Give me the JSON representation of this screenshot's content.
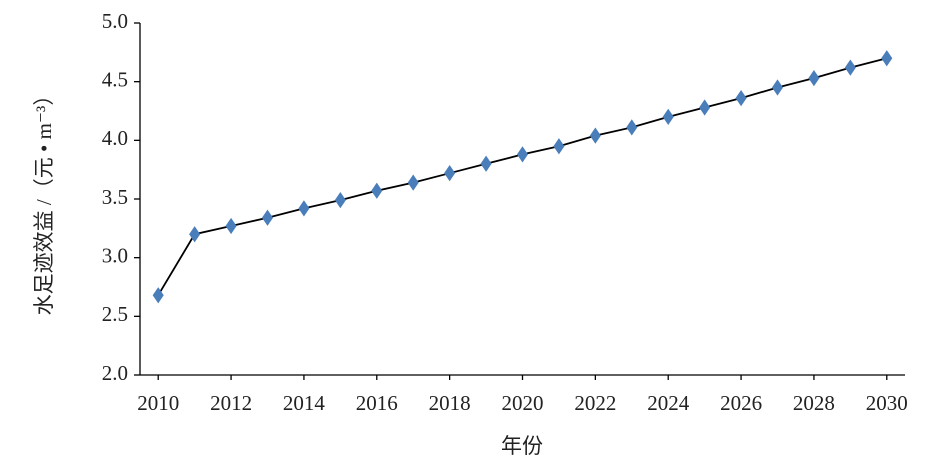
{
  "chart_data": {
    "type": "line",
    "x_label": "年份",
    "y_label": "水足迹效益 /（元 • m⁻³）",
    "x": [
      2010,
      2011,
      2012,
      2013,
      2014,
      2015,
      2016,
      2017,
      2018,
      2019,
      2020,
      2021,
      2022,
      2023,
      2024,
      2025,
      2026,
      2027,
      2028,
      2029,
      2030
    ],
    "series": [
      {
        "color": "#4a7ebb",
        "line_color": "#000000",
        "values": [
          2.68,
          3.2,
          3.27,
          3.34,
          3.42,
          3.49,
          3.57,
          3.64,
          3.72,
          3.8,
          3.88,
          3.95,
          4.04,
          4.11,
          4.2,
          4.28,
          4.36,
          4.45,
          4.53,
          4.62,
          4.7
        ]
      }
    ],
    "xlim": [
      2009.5,
      2030.5
    ],
    "xticks": [
      2010,
      2012,
      2014,
      2016,
      2018,
      2020,
      2022,
      2024,
      2026,
      2028,
      2030
    ],
    "ylim": [
      2,
      5
    ],
    "yticks": [
      {
        "value": 2,
        "label": "2.0"
      },
      2.5,
      {
        "value": 3,
        "label": "3.0"
      },
      3.5,
      {
        "value": 4,
        "label": "4.0"
      },
      4.5,
      {
        "value": 5,
        "label": "5.0"
      }
    ],
    "grid": false
  }
}
